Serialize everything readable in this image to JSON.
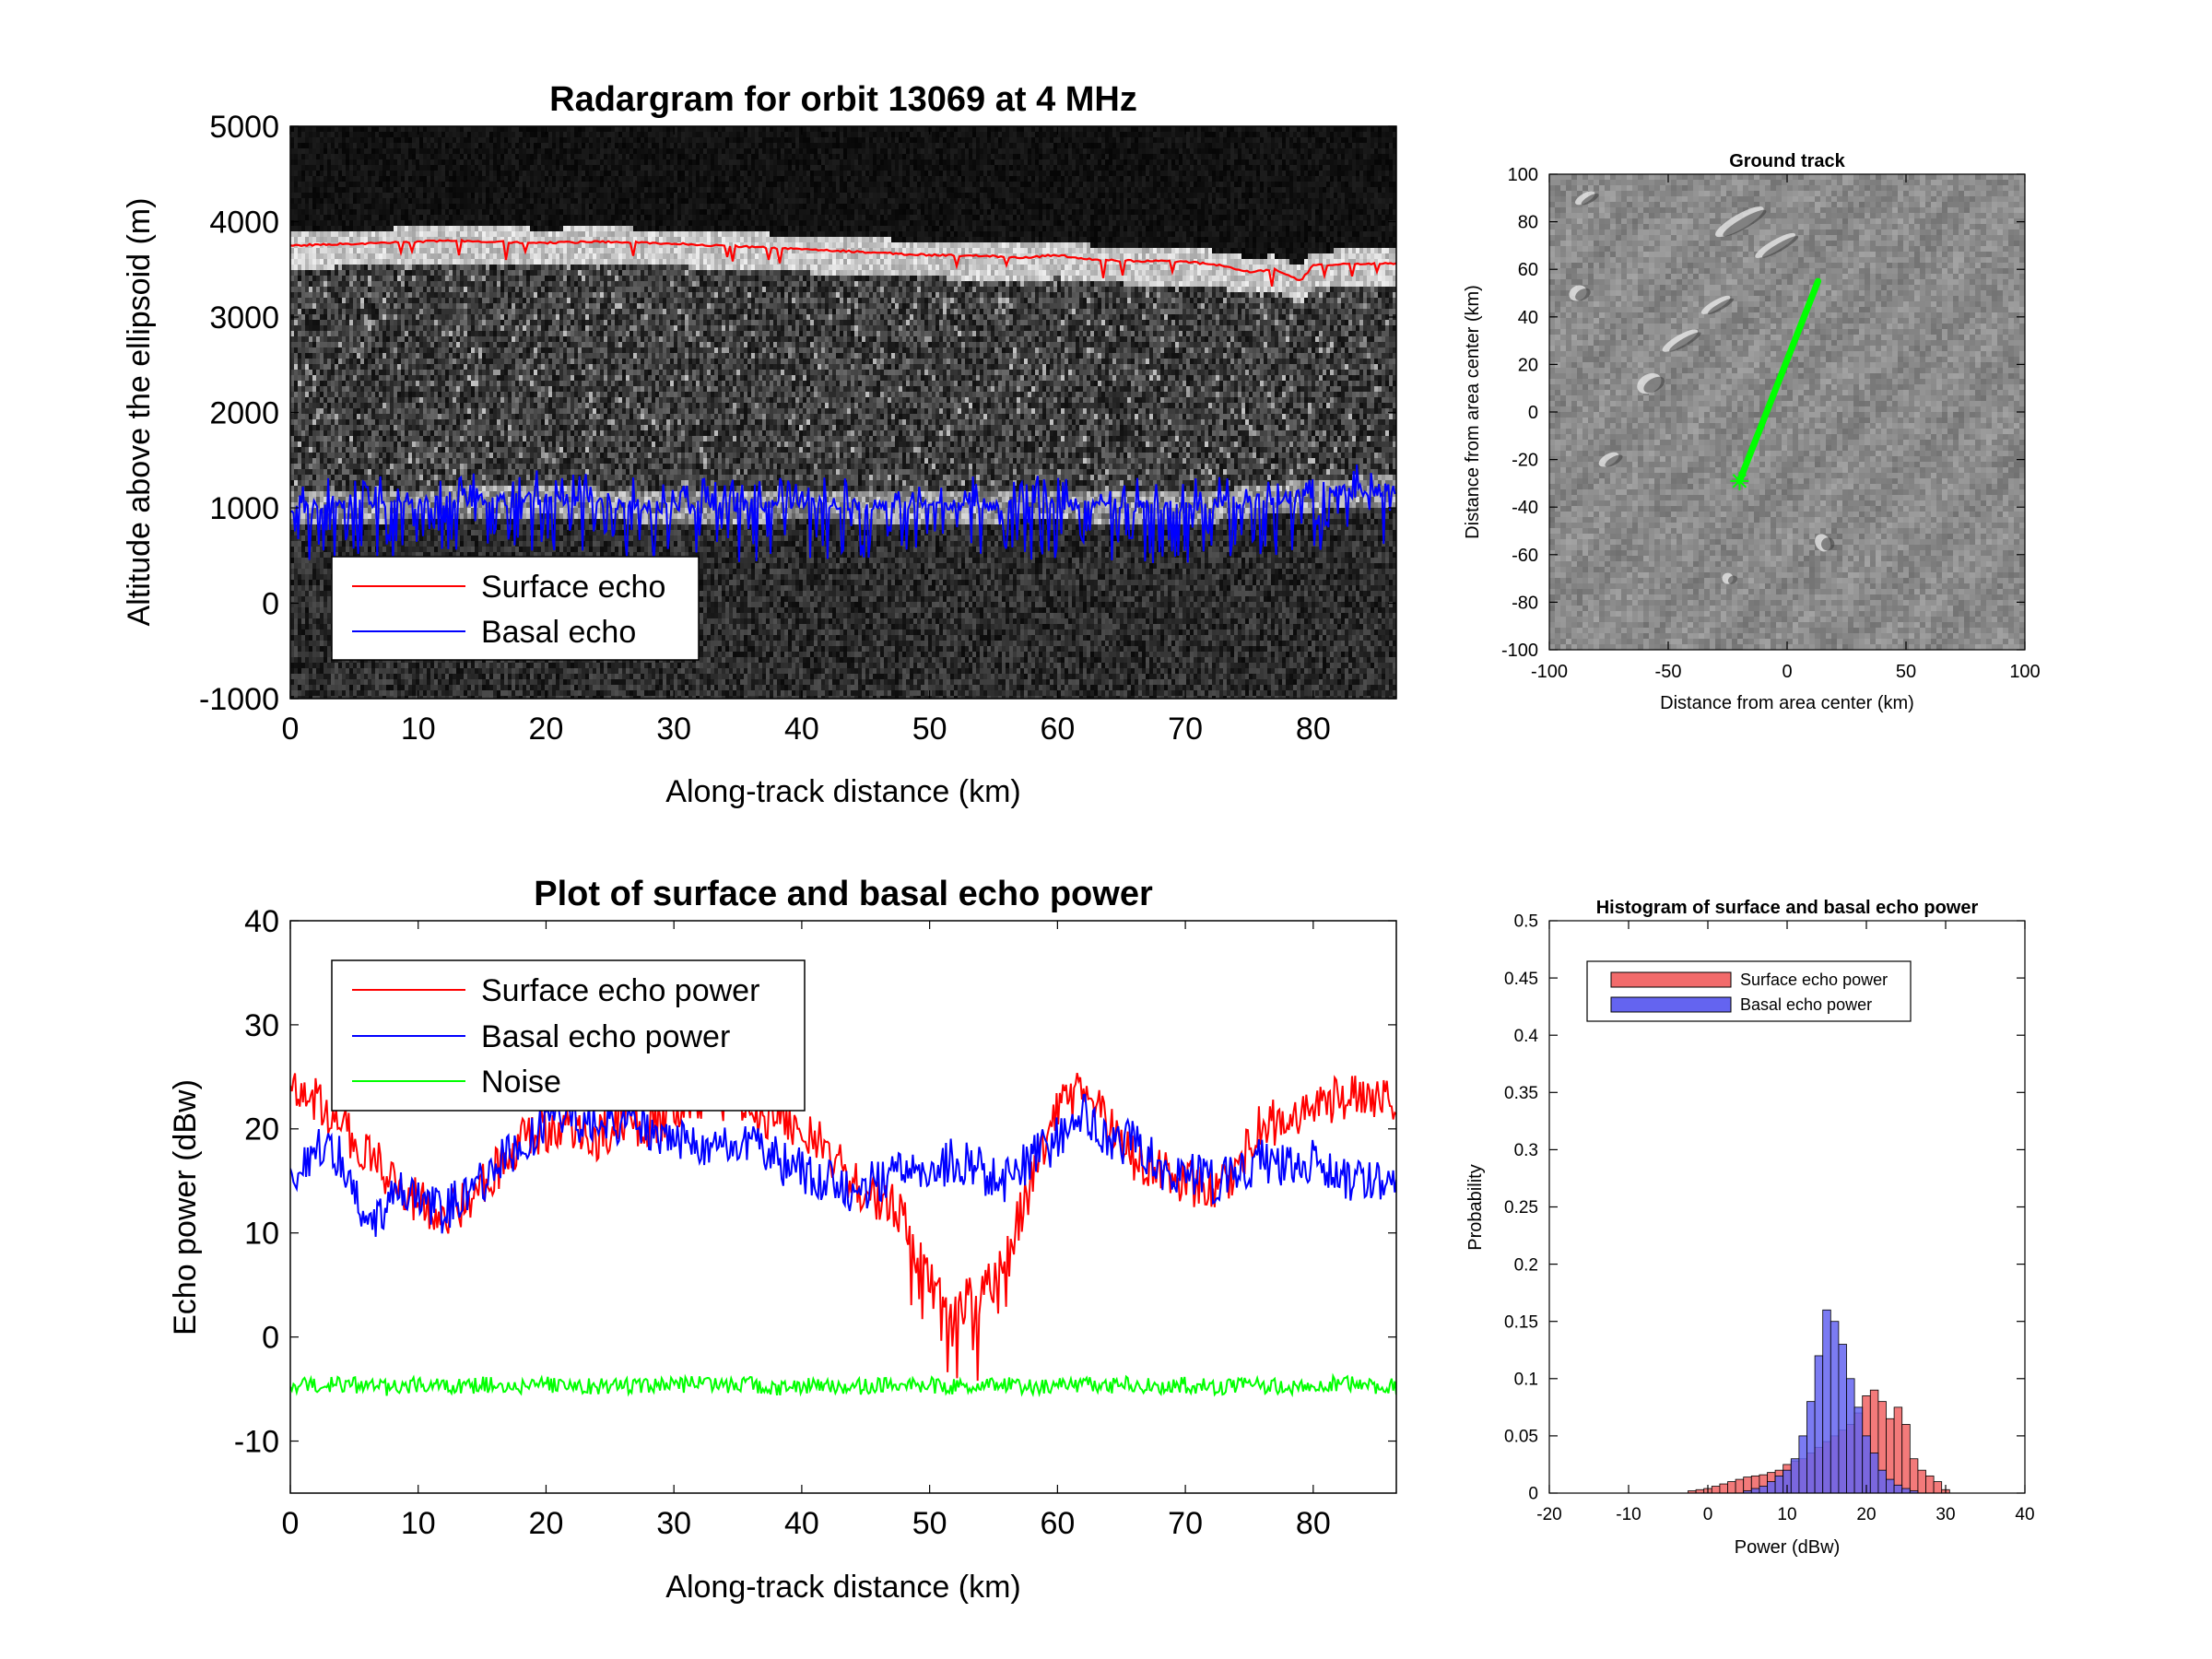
{
  "chart_data": [
    {
      "type": "heatmap",
      "title": "Radargram for orbit 13069 at 4 MHz",
      "xlabel": "Along-track distance (km)",
      "ylabel": "Altitude above the ellipsoid (m)",
      "xlim": [
        0,
        86.5
      ],
      "ylim": [
        -1000,
        5000
      ],
      "xticks": [
        "0",
        "10",
        "20",
        "30",
        "40",
        "50",
        "60",
        "70",
        "80"
      ],
      "yticks": [
        "-1000",
        "0",
        "1000",
        "2000",
        "3000",
        "4000",
        "5000"
      ],
      "legend_position": "lower-left",
      "series": [
        {
          "name": "Surface echo",
          "color": "#ff0000",
          "x": [
            0,
            5,
            10,
            13,
            15,
            20,
            25,
            30,
            35,
            40,
            45,
            48,
            50,
            55,
            57,
            60,
            63,
            65,
            70,
            73,
            75,
            77,
            79,
            80,
            83,
            86.5
          ],
          "y": [
            3750,
            3770,
            3790,
            3800,
            3790,
            3780,
            3790,
            3770,
            3740,
            3710,
            3680,
            3660,
            3650,
            3640,
            3620,
            3650,
            3600,
            3590,
            3580,
            3540,
            3470,
            3500,
            3380,
            3540,
            3560,
            3560
          ]
        },
        {
          "name": "Basal echo",
          "color": "#0000ff",
          "x": [
            0,
            10,
            20,
            30,
            40,
            50,
            60,
            70,
            80,
            86.5
          ],
          "y": [
            1000,
            1050,
            1100,
            1000,
            1050,
            1020,
            1050,
            1000,
            1150,
            1200
          ]
        }
      ]
    },
    {
      "type": "scatter",
      "title": "Ground track",
      "xlabel": "Distance from area center (km)",
      "ylabel": "Distance from area center (km)",
      "xlim": [
        -100,
        100
      ],
      "ylim": [
        -100,
        100
      ],
      "xticks": [
        "-100",
        "-50",
        "0",
        "50",
        "100"
      ],
      "yticks": [
        "-100",
        "-80",
        "-60",
        "-40",
        "-20",
        "0",
        "20",
        "40",
        "60",
        "80",
        "100"
      ],
      "series": [
        {
          "color": "#00ff00",
          "x": [
            -20,
            13
          ],
          "y": [
            -29,
            55
          ]
        }
      ]
    },
    {
      "type": "line",
      "title": "Plot of surface and basal echo power",
      "xlabel": "Along-track distance (km)",
      "ylabel": "Echo power (dBw)",
      "xlim": [
        0,
        86.5
      ],
      "ylim": [
        -15,
        40
      ],
      "xticks": [
        "0",
        "10",
        "20",
        "30",
        "40",
        "50",
        "60",
        "70",
        "80"
      ],
      "yticks": [
        "-10",
        "0",
        "10",
        "20",
        "30",
        "40"
      ],
      "legend_position": "top-left",
      "x": [
        0,
        2,
        4,
        6,
        8,
        10,
        12,
        14,
        16,
        18,
        20,
        22,
        24,
        26,
        28,
        30,
        32,
        34,
        36,
        38,
        40,
        42,
        44,
        46,
        48,
        50,
        52,
        54,
        56,
        58,
        60,
        62,
        64,
        66,
        68,
        70,
        72,
        74,
        76,
        78,
        80,
        82,
        84,
        86.5
      ],
      "series": [
        {
          "name": "Surface echo power",
          "color": "#ff0000",
          "values": [
            24,
            23,
            20,
            18,
            15,
            13,
            12,
            13,
            16,
            19,
            20,
            20,
            19,
            21,
            20,
            22,
            23,
            23,
            22,
            21,
            20,
            18,
            15,
            13,
            12,
            5,
            3,
            4,
            8,
            15,
            22,
            24,
            21,
            17,
            16,
            15,
            14,
            16,
            21,
            20,
            22,
            23,
            23,
            23
          ]
        },
        {
          "name": "Basal echo power",
          "color": "#0000ff",
          "values": [
            14,
            18,
            17,
            10,
            14,
            13,
            12,
            14,
            16,
            19,
            20,
            21,
            20,
            21,
            20,
            19,
            18,
            18,
            19,
            17,
            16,
            15,
            14,
            15,
            17,
            16,
            17,
            16,
            15,
            17,
            19,
            22,
            18,
            19,
            16,
            16,
            15,
            16,
            17,
            16,
            17,
            15,
            15,
            14
          ]
        },
        {
          "name": "Noise",
          "color": "#00ff00",
          "values": [
            -4.6,
            -4.8,
            -4.5,
            -4.7,
            -4.9,
            -4.6,
            -4.8,
            -4.7,
            -4.5,
            -4.9,
            -4.6,
            -4.8,
            -4.7,
            -4.6,
            -4.8,
            -4.7,
            -4.5,
            -4.8,
            -4.6,
            -4.9,
            -4.7,
            -4.6,
            -4.8,
            -4.7,
            -4.5,
            -4.6,
            -4.8,
            -4.7,
            -4.6,
            -4.9,
            -4.7,
            -4.6,
            -4.8,
            -4.5,
            -4.7,
            -4.6,
            -4.8,
            -4.7,
            -4.6,
            -4.8,
            -4.7,
            -4.5,
            -4.6,
            -4.8
          ]
        }
      ]
    },
    {
      "type": "bar",
      "title": "Histogram of surface and basal echo power",
      "xlabel": "Power (dBw)",
      "ylabel": "Probability",
      "xlim": [
        -20,
        40
      ],
      "ylim": [
        0,
        0.5
      ],
      "xticks": [
        "-20",
        "-10",
        "0",
        "10",
        "20",
        "30",
        "40"
      ],
      "yticks": [
        "0",
        "0.05",
        "0.1",
        "0.15",
        "0.2",
        "0.25",
        "0.3",
        "0.35",
        "0.4",
        "0.45",
        "0.5"
      ],
      "legend_position": "top-left",
      "bin_width": 1,
      "series": [
        {
          "name": "Surface echo power",
          "color": "#f26b6b",
          "bins": [
            -2,
            -1,
            0,
            1,
            2,
            3,
            4,
            5,
            6,
            7,
            8,
            9,
            10,
            11,
            12,
            13,
            14,
            15,
            16,
            17,
            18,
            19,
            20,
            21,
            22,
            23,
            24,
            25,
            26,
            27,
            28,
            29,
            30
          ],
          "values": [
            0.002,
            0.003,
            0.004,
            0.006,
            0.008,
            0.01,
            0.012,
            0.014,
            0.015,
            0.016,
            0.018,
            0.02,
            0.025,
            0.028,
            0.03,
            0.035,
            0.04,
            0.045,
            0.05,
            0.055,
            0.06,
            0.07,
            0.085,
            0.09,
            0.08,
            0.065,
            0.075,
            0.06,
            0.03,
            0.02,
            0.015,
            0.01,
            0.003
          ]
        },
        {
          "name": "Basal echo power",
          "color": "#6464f0",
          "bins": [
            5,
            6,
            7,
            8,
            9,
            10,
            11,
            12,
            13,
            14,
            15,
            16,
            17,
            18,
            19,
            20,
            21,
            22,
            23,
            24,
            25,
            26
          ],
          "values": [
            0.002,
            0.004,
            0.006,
            0.01,
            0.015,
            0.02,
            0.03,
            0.05,
            0.08,
            0.12,
            0.16,
            0.15,
            0.13,
            0.1,
            0.075,
            0.05,
            0.035,
            0.02,
            0.012,
            0.007,
            0.004,
            0.002
          ]
        }
      ]
    }
  ]
}
